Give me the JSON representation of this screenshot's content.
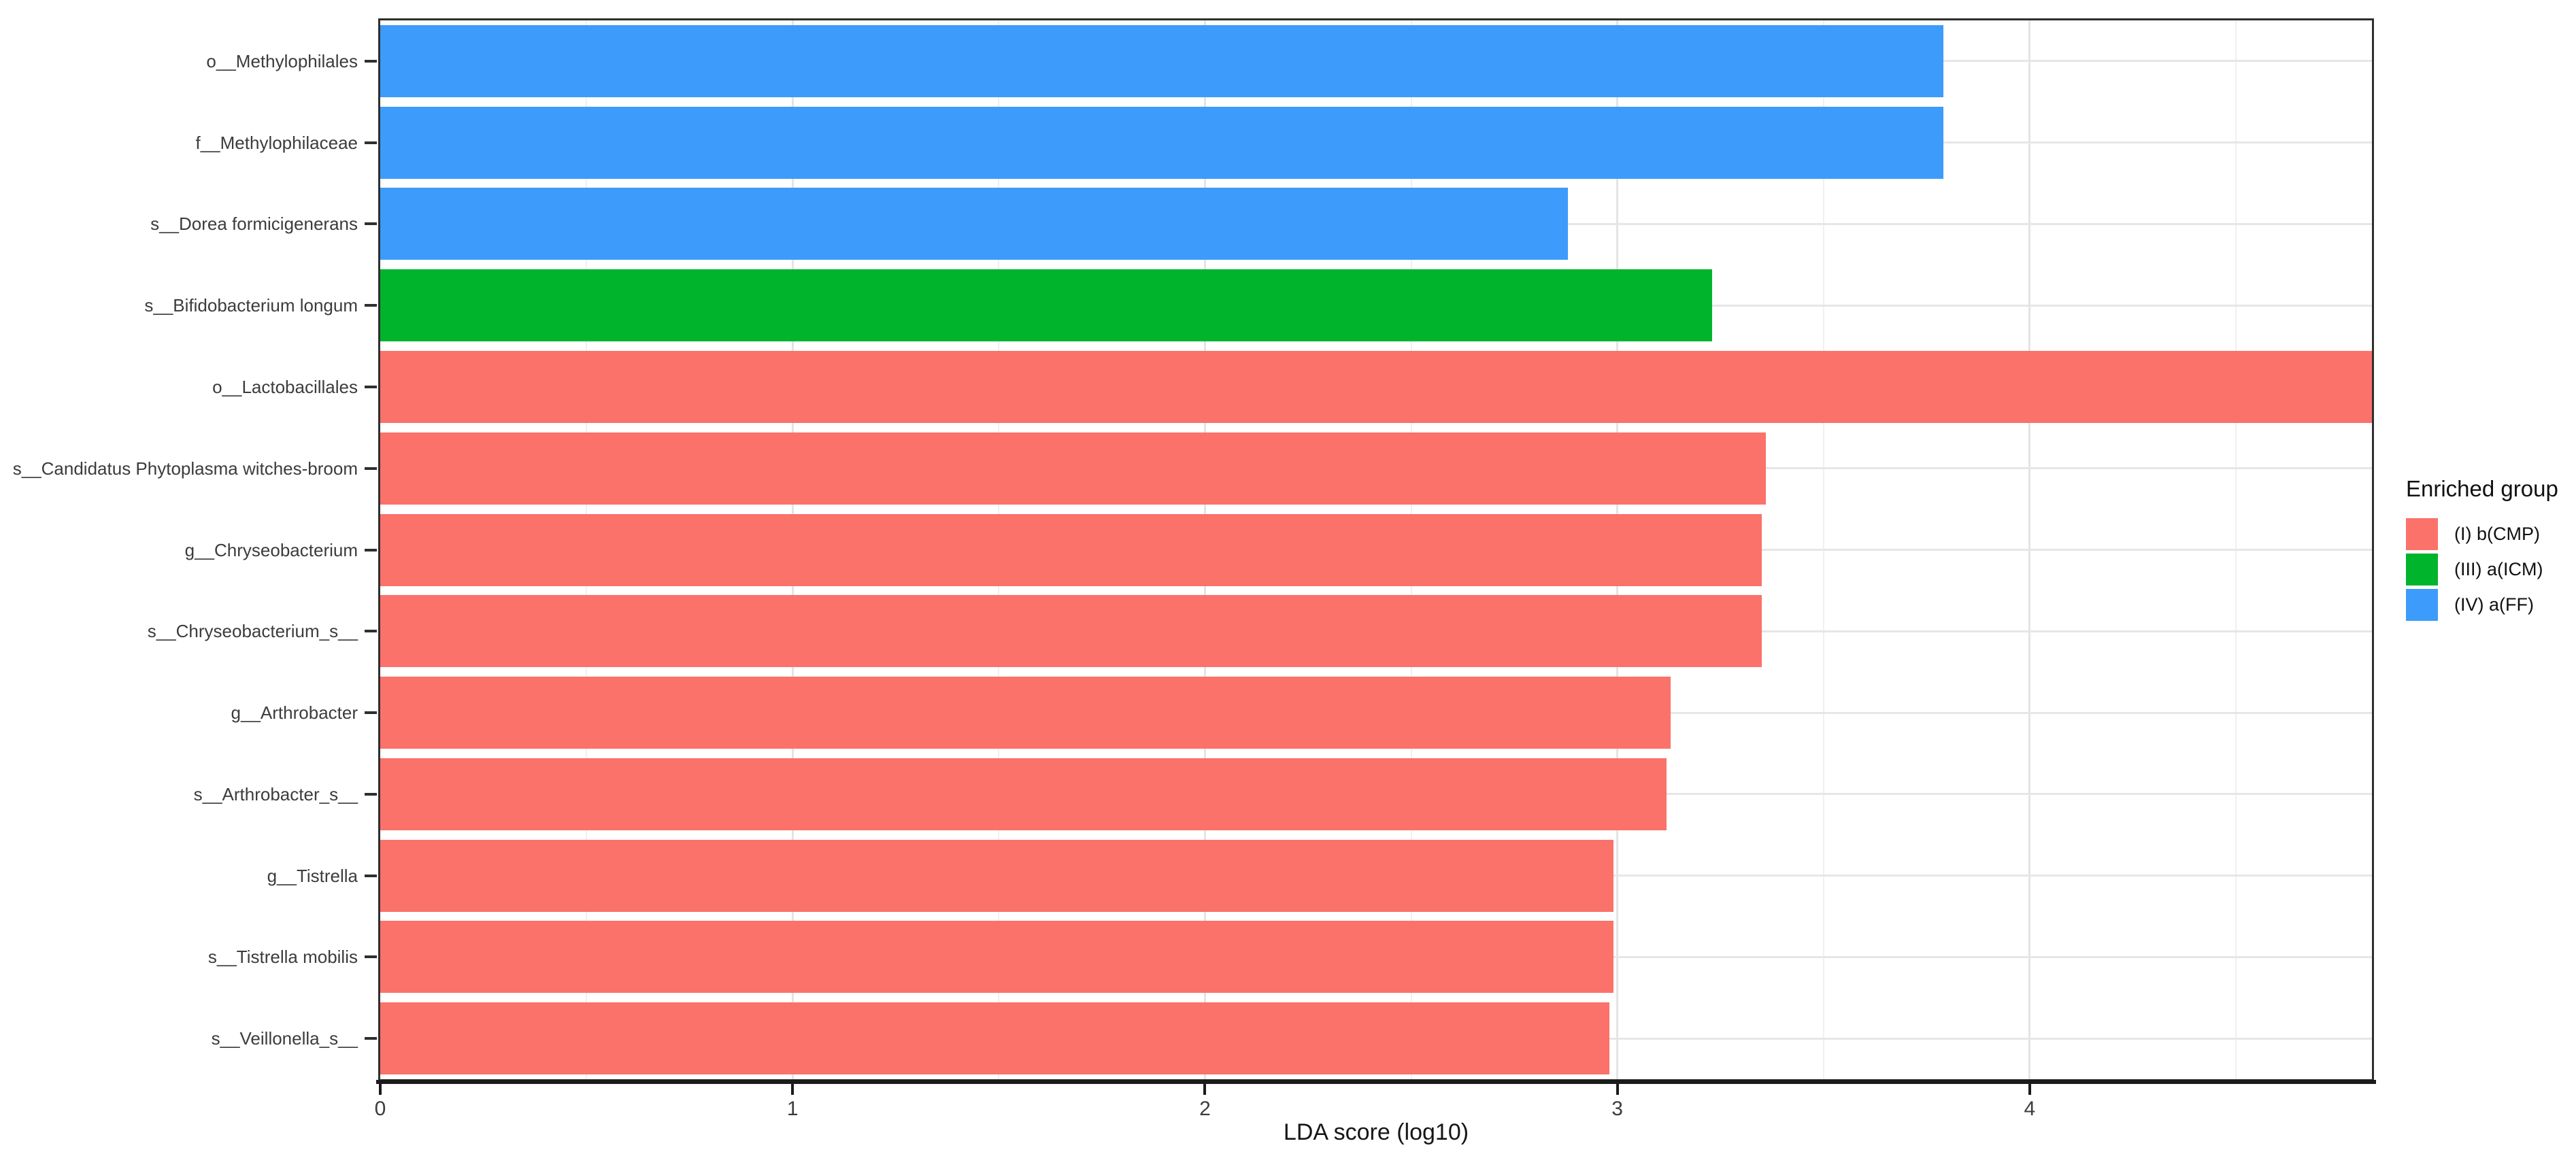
{
  "chart_data": {
    "type": "bar",
    "orientation": "horizontal",
    "title": "",
    "xlabel": "LDA score (log10)",
    "ylabel": "",
    "xlim": [
      0,
      4.83
    ],
    "x_ticks": [
      "0",
      "1",
      "2",
      "3",
      "4"
    ],
    "grid": {
      "vertical_major": [
        1,
        2,
        3,
        4
      ],
      "vertical_minor": [
        0.5,
        1.5,
        2.5,
        3.5,
        4.5
      ],
      "horizontal_major": "category-centers",
      "gridline_color_major": "#e4e4e4",
      "gridline_color_minor": "#f0f0f0"
    },
    "legend": {
      "title": "Enriched group",
      "position": "right",
      "entries": [
        {
          "label": "(I) b(CMP)",
          "color": "#fa726a"
        },
        {
          "label": "(III) a(ICM)",
          "color": "#00b42c"
        },
        {
          "label": "(IV) a(FF)",
          "color": "#3d9bfb"
        }
      ]
    },
    "bars": [
      {
        "category": "o__Methylophilales",
        "value": 3.79,
        "group": "(IV) a(FF)"
      },
      {
        "category": "f__Methylophilaceae",
        "value": 3.79,
        "group": "(IV) a(FF)"
      },
      {
        "category": "s__Dorea formicigenerans",
        "value": 2.88,
        "group": "(IV) a(FF)"
      },
      {
        "category": "s__Bifidobacterium longum",
        "value": 3.23,
        "group": "(III) a(ICM)"
      },
      {
        "category": "o__Lactobacillales",
        "value": 4.83,
        "group": "(I) b(CMP)"
      },
      {
        "category": "s__Candidatus Phytoplasma witches-broom",
        "value": 3.36,
        "group": "(I) b(CMP)"
      },
      {
        "category": "g__Chryseobacterium",
        "value": 3.35,
        "group": "(I) b(CMP)"
      },
      {
        "category": "s__Chryseobacterium_s__",
        "value": 3.35,
        "group": "(I) b(CMP)"
      },
      {
        "category": "g__Arthrobacter",
        "value": 3.13,
        "group": "(I) b(CMP)"
      },
      {
        "category": "s__Arthrobacter_s__",
        "value": 3.12,
        "group": "(I) b(CMP)"
      },
      {
        "category": "g__Tistrella",
        "value": 2.99,
        "group": "(I) b(CMP)"
      },
      {
        "category": "s__Tistrella mobilis",
        "value": 2.99,
        "group": "(I) b(CMP)"
      },
      {
        "category": "s__Veillonella_s__",
        "value": 2.98,
        "group": "(I) b(CMP)"
      }
    ]
  }
}
